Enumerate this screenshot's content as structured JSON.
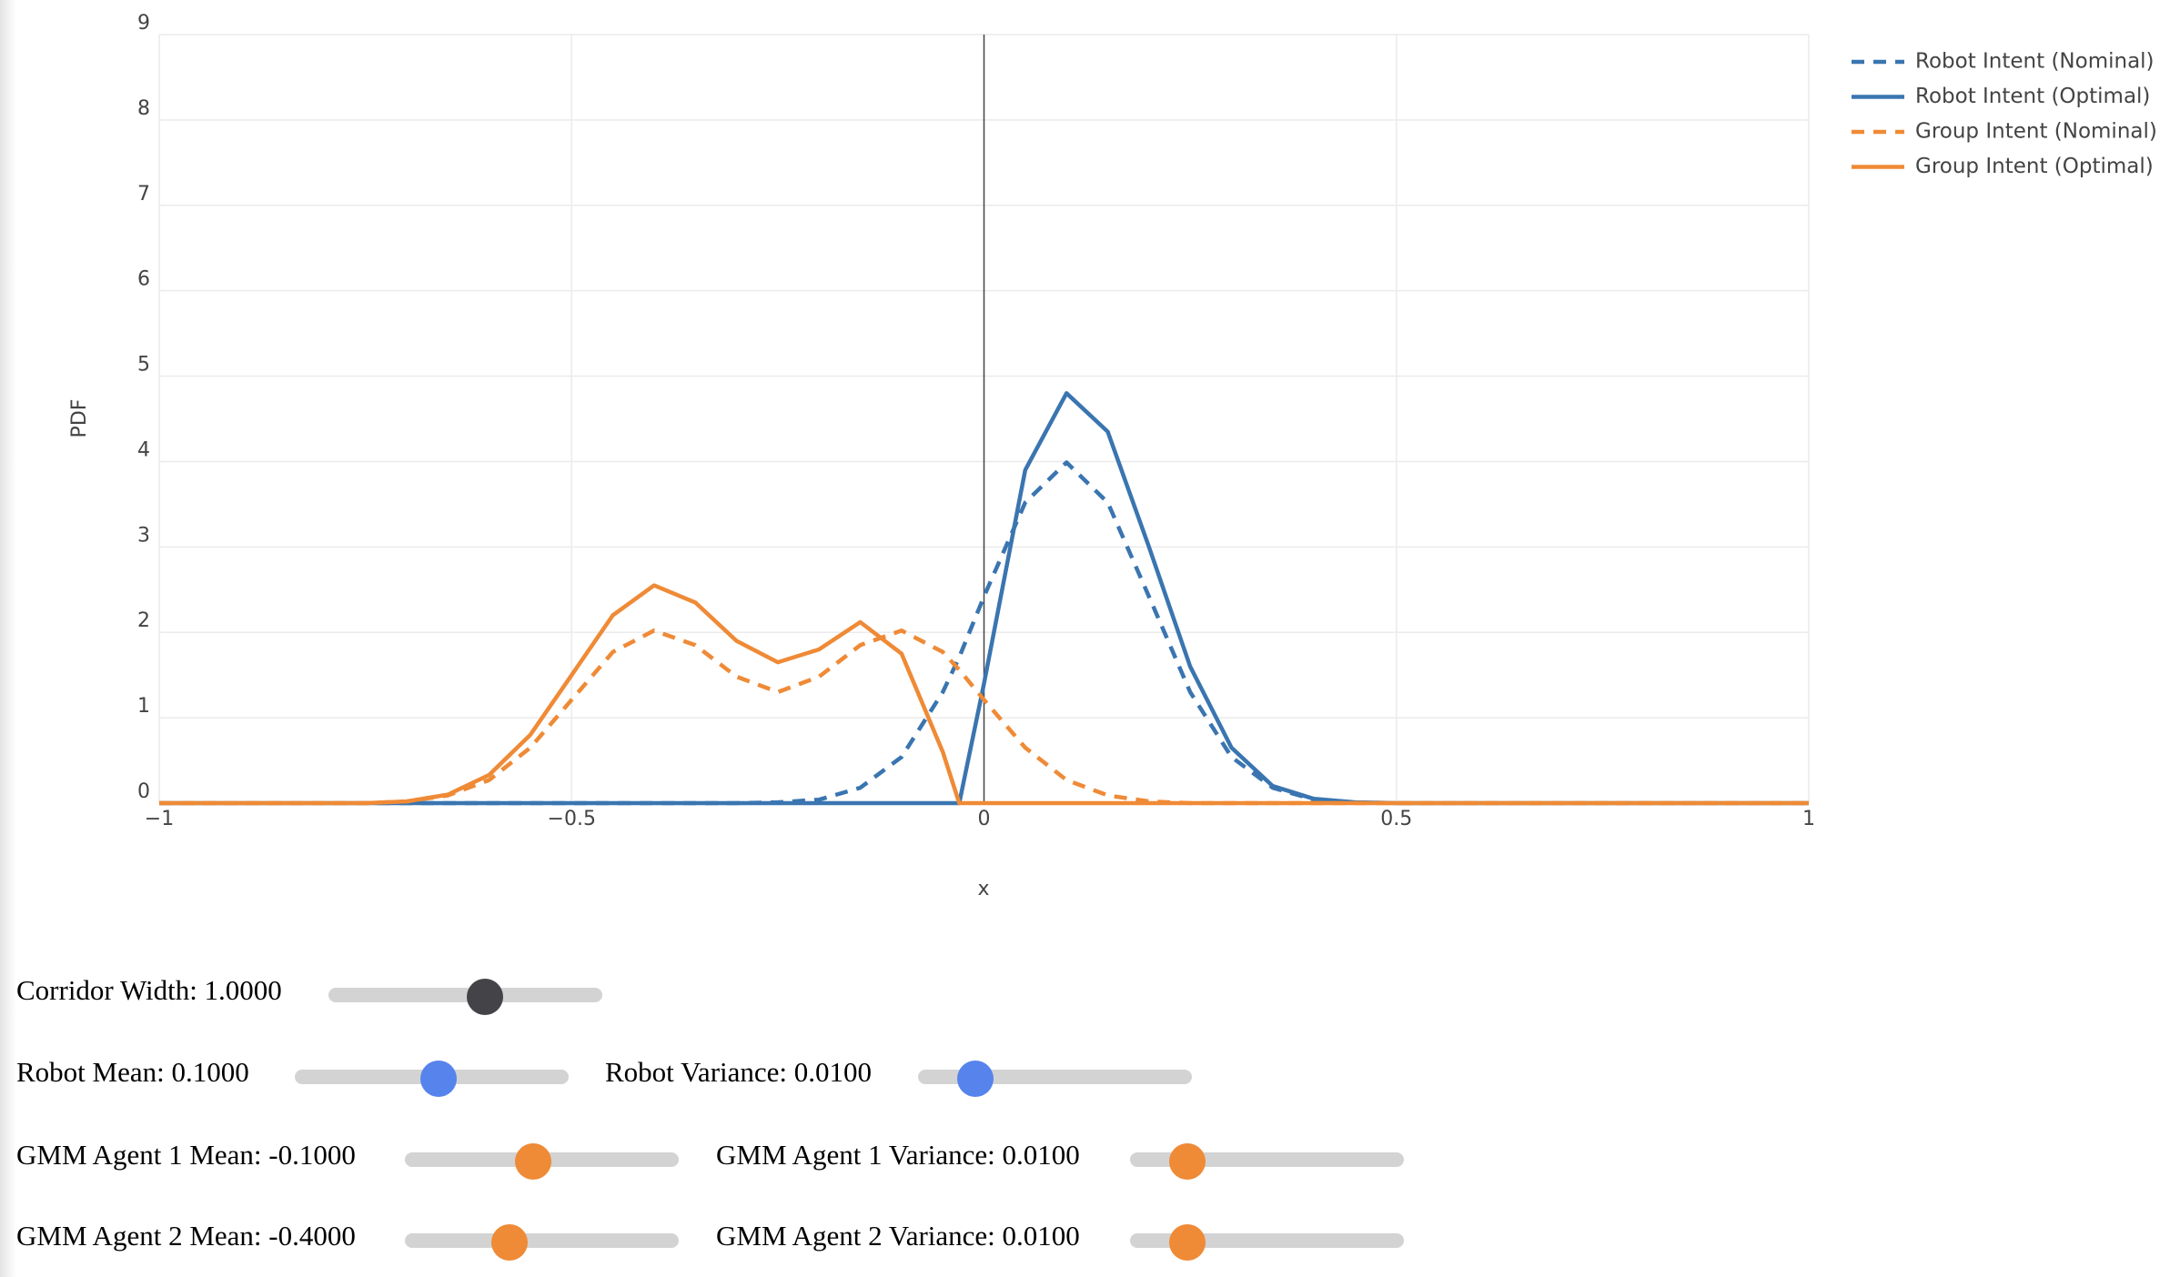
{
  "chart_data": {
    "type": "line",
    "xlabel": "x",
    "ylabel": "PDF",
    "x": [
      -1,
      -0.9,
      -0.8,
      -0.75,
      -0.7,
      -0.65,
      -0.6,
      -0.55,
      -0.5,
      -0.45,
      -0.4,
      -0.35,
      -0.3,
      -0.25,
      -0.2,
      -0.15,
      -0.1,
      -0.05,
      -0.03,
      0,
      0.05,
      0.1,
      0.15,
      0.2,
      0.25,
      0.3,
      0.35,
      0.4,
      0.45,
      0.5,
      0.6,
      0.8,
      1
    ],
    "series": [
      {
        "name": "Robot Intent (Nominal)",
        "color": "#3a75b0",
        "dash": true,
        "values": [
          0,
          0,
          0,
          0,
          0,
          0,
          0,
          0,
          0,
          0,
          0,
          0,
          0,
          0.01,
          0.04,
          0.18,
          0.54,
          1.3,
          1.71,
          2.42,
          3.52,
          3.99,
          3.52,
          2.42,
          1.3,
          0.54,
          0.18,
          0.04,
          0.01,
          0,
          0,
          0,
          0
        ]
      },
      {
        "name": "Robot Intent (Optimal)",
        "color": "#3a75b0",
        "dash": false,
        "values": [
          0,
          0,
          0,
          0,
          0,
          0,
          0,
          0,
          0,
          0,
          0,
          0,
          0,
          0,
          0,
          0,
          0,
          0,
          0,
          1.4,
          3.9,
          4.8,
          4.35,
          3.0,
          1.6,
          0.65,
          0.2,
          0.05,
          0.01,
          0,
          0,
          0,
          0
        ]
      },
      {
        "name": "Group Intent (Nominal)",
        "color": "#ef8a36",
        "dash": true,
        "values": [
          0,
          0,
          0,
          0,
          0.02,
          0.09,
          0.27,
          0.65,
          1.21,
          1.77,
          2.02,
          1.85,
          1.48,
          1.3,
          1.48,
          1.85,
          2.02,
          1.77,
          1.56,
          1.21,
          0.65,
          0.27,
          0.09,
          0.02,
          0,
          0,
          0,
          0,
          0,
          0,
          0,
          0,
          0
        ]
      },
      {
        "name": "Group Intent (Optimal)",
        "color": "#ef8a36",
        "dash": false,
        "values": [
          0,
          0,
          0,
          0,
          0.02,
          0.1,
          0.33,
          0.8,
          1.5,
          2.2,
          2.55,
          2.35,
          1.9,
          1.65,
          1.8,
          2.12,
          1.75,
          0.6,
          0,
          0,
          0,
          0,
          0,
          0,
          0,
          0,
          0,
          0,
          0,
          0,
          0,
          0,
          0
        ]
      }
    ],
    "xlim": [
      -1,
      1
    ],
    "xticks": [
      {
        "value": -1,
        "label": "−1"
      },
      {
        "value": -0.5,
        "label": "−0.5"
      },
      0,
      0.5,
      1
    ],
    "ylim": [
      0,
      9
    ],
    "yticks": [
      0,
      1,
      2,
      3,
      4,
      5,
      6,
      7,
      8,
      9
    ],
    "grid": true,
    "legend": "top-right"
  },
  "controls": [
    {
      "label": "Corridor Width: 1.0000",
      "color": "#444448"
    },
    {
      "label": "Robot Mean: 0.1000",
      "color": "#5683ec"
    },
    {
      "label": "Robot Variance: 0.0100",
      "color": "#5683ec"
    },
    {
      "label": "GMM Agent 1 Mean: -0.1000",
      "color": "#ef8a36"
    },
    {
      "label": "GMM Agent 1 Variance: 0.0100",
      "color": "#ef8a36"
    },
    {
      "label": "GMM Agent 2 Mean: -0.4000",
      "color": "#ef8a36"
    },
    {
      "label": "GMM Agent 2 Variance: 0.0100",
      "color": "#ef8a36"
    }
  ]
}
